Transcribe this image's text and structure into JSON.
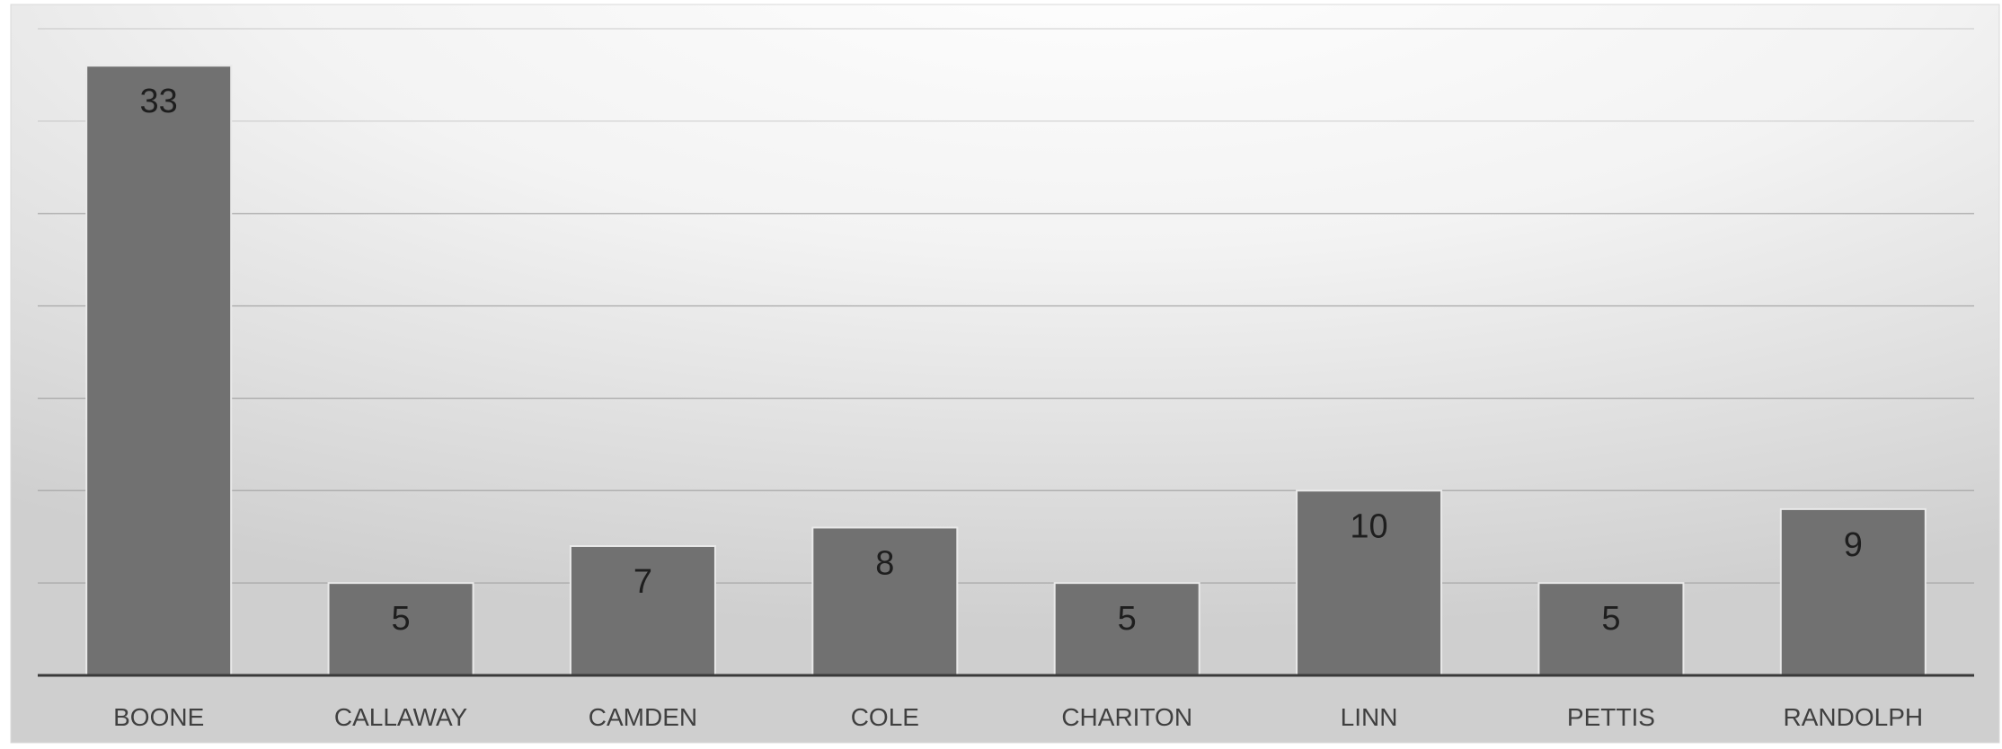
{
  "chart_data": {
    "type": "bar",
    "title": "",
    "xlabel": "",
    "ylabel": "",
    "categories": [
      "BOONE",
      "CALLAWAY",
      "CAMDEN",
      "COLE",
      "CHARITON",
      "LINN",
      "PETTIS",
      "RANDOLPH"
    ],
    "values": [
      33,
      5,
      7,
      8,
      5,
      10,
      5,
      9
    ],
    "ylim": [
      0,
      35
    ],
    "y_gridline_step": 5,
    "grid": true,
    "data_labels": true,
    "legend": "none",
    "bar_color": "#717171",
    "bar_border_color": "#e9e9e9",
    "gridline_color": "#a6a6a6",
    "axis_color": "#3a3a3a",
    "label_color": "#404040",
    "value_label_color": "#1e1e1e"
  }
}
